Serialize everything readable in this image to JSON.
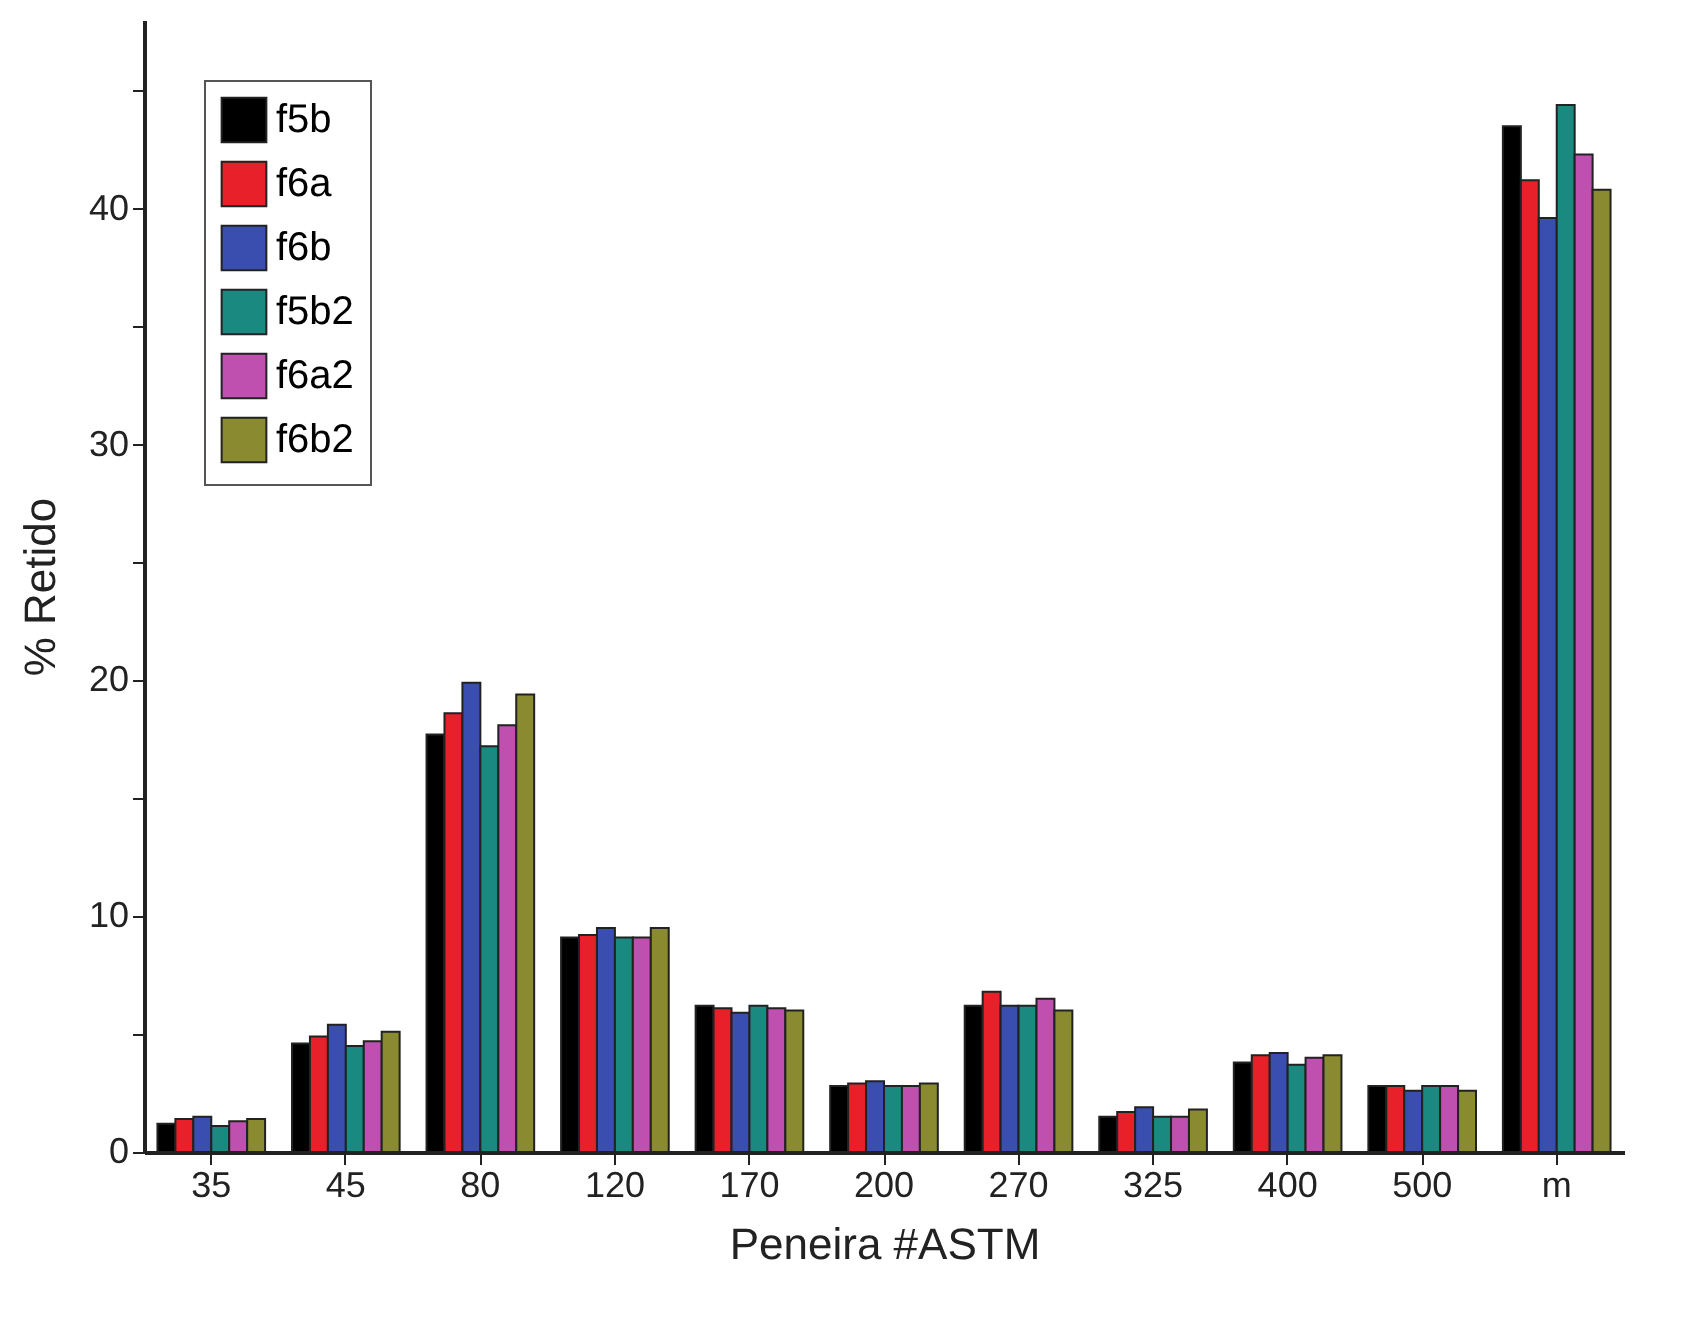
{
  "chart_data": {
    "type": "bar",
    "xlabel": "Peneira #ASTM",
    "ylabel": "% Retido",
    "categories": [
      "35",
      "45",
      "80",
      "120",
      "170",
      "200",
      "270",
      "325",
      "400",
      "500",
      "m"
    ],
    "series": [
      {
        "name": "f5b",
        "color": "#000000",
        "values": [
          1.2,
          4.6,
          17.7,
          9.1,
          6.2,
          2.8,
          6.2,
          1.5,
          3.8,
          2.8,
          43.5
        ]
      },
      {
        "name": "f6a",
        "color": "#e8202a",
        "values": [
          1.4,
          4.9,
          18.6,
          9.2,
          6.1,
          2.9,
          6.8,
          1.7,
          4.1,
          2.8,
          41.2
        ]
      },
      {
        "name": "f6b",
        "color": "#3a4eb0",
        "values": [
          1.5,
          5.4,
          19.9,
          9.5,
          5.9,
          3.0,
          6.2,
          1.9,
          4.2,
          2.6,
          39.6
        ]
      },
      {
        "name": "f5b2",
        "color": "#1a8a80",
        "values": [
          1.1,
          4.5,
          17.2,
          9.1,
          6.2,
          2.8,
          6.2,
          1.5,
          3.7,
          2.8,
          44.4
        ]
      },
      {
        "name": "f6a2",
        "color": "#c050b0",
        "values": [
          1.3,
          4.7,
          18.1,
          9.1,
          6.1,
          2.8,
          6.5,
          1.5,
          4.0,
          2.8,
          42.3
        ]
      },
      {
        "name": "f6b2",
        "color": "#8a8a30",
        "values": [
          1.4,
          5.1,
          19.4,
          9.5,
          6.0,
          2.9,
          6.0,
          1.8,
          4.1,
          2.6,
          40.8
        ]
      }
    ],
    "ylim": [
      0,
      48
    ],
    "yticks": [
      0,
      {
        "value": 5,
        "label": null
      },
      10,
      {
        "value": 15,
        "label": null
      },
      20,
      {
        "value": 25,
        "label": null
      },
      30,
      {
        "value": 35,
        "label": null
      },
      40,
      {
        "value": 45,
        "label": null
      }
    ],
    "grid": false,
    "legend": "top left"
  }
}
